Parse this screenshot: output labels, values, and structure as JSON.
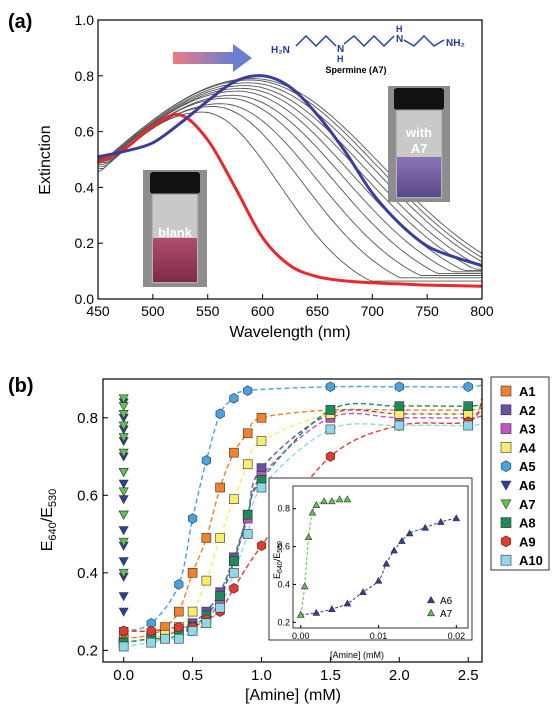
{
  "chart_data": [
    {
      "type": "line",
      "panel_label": "(a)",
      "xlabel": "Wavelength (nm)",
      "ylabel": "Extinction",
      "xlim": [
        450,
        800
      ],
      "ylim": [
        0.0,
        1.0
      ],
      "xticks": [
        450,
        500,
        550,
        600,
        650,
        700,
        750,
        800
      ],
      "yticks": [
        0.0,
        0.2,
        0.4,
        0.6,
        0.8,
        1.0
      ],
      "series": [
        {
          "style": "blank",
          "color": "#e8282b",
          "peak_nm": 525,
          "peak": 0.66,
          "x": [
            450,
            475,
            500,
            525,
            550,
            575,
            600,
            625,
            650,
            675,
            700,
            725,
            750,
            775,
            800
          ],
          "y": [
            0.49,
            0.54,
            0.62,
            0.66,
            0.57,
            0.4,
            0.22,
            0.12,
            0.08,
            0.065,
            0.058,
            0.054,
            0.05,
            0.048,
            0.046
          ]
        },
        {
          "style": "intermediate",
          "color": "#555555",
          "peak_nm": 545,
          "peak": 0.67
        },
        {
          "style": "intermediate",
          "color": "#555555",
          "peak_nm": 555,
          "peak": 0.69
        },
        {
          "style": "intermediate",
          "color": "#555555",
          "peak_nm": 562,
          "peak": 0.7
        },
        {
          "style": "intermediate",
          "color": "#555555",
          "peak_nm": 568,
          "peak": 0.72
        },
        {
          "style": "intermediate",
          "color": "#555555",
          "peak_nm": 573,
          "peak": 0.73
        },
        {
          "style": "intermediate",
          "color": "#555555",
          "peak_nm": 577,
          "peak": 0.745
        },
        {
          "style": "intermediate",
          "color": "#555555",
          "peak_nm": 581,
          "peak": 0.755
        },
        {
          "style": "intermediate",
          "color": "#555555",
          "peak_nm": 584,
          "peak": 0.765
        },
        {
          "style": "intermediate",
          "color": "#555555",
          "peak_nm": 587,
          "peak": 0.775
        },
        {
          "style": "intermediate",
          "color": "#555555",
          "peak_nm": 589,
          "peak": 0.785
        },
        {
          "style": "intermediate",
          "color": "#555555",
          "peak_nm": 591,
          "peak": 0.79
        },
        {
          "style": "with A7",
          "color": "#3a3d9c",
          "peak_nm": 592,
          "peak": 0.8,
          "x": [
            450,
            475,
            500,
            525,
            550,
            575,
            600,
            625,
            650,
            675,
            700,
            725,
            750,
            775,
            800
          ],
          "y": [
            0.51,
            0.53,
            0.56,
            0.63,
            0.71,
            0.78,
            0.8,
            0.76,
            0.66,
            0.53,
            0.38,
            0.27,
            0.19,
            0.15,
            0.12
          ]
        }
      ],
      "annotations": {
        "molecule_left": "H₂N",
        "molecule_nh": "N",
        "molecule_h": "H",
        "molecule_right": "NH₂",
        "molecule_name": "Spermine (A7)",
        "vial_blank": "blank",
        "vial_with_line1": "with",
        "vial_with_line2": "A7"
      }
    },
    {
      "type": "scatter",
      "panel_label": "(b)",
      "xlabel": "[Amine] (mM)",
      "ylabel_main": "E",
      "ylabel_sub1": "640",
      "ylabel_sep": "/E",
      "ylabel_sub2": "530",
      "xlim": [
        -0.15,
        2.6
      ],
      "ylim": [
        0.17,
        0.9
      ],
      "xticks": [
        0.0,
        0.5,
        1.0,
        1.5,
        2.0,
        2.5
      ],
      "yticks": [
        0.2,
        0.4,
        0.6,
        0.8
      ],
      "legend_position": "right-outside",
      "series": [
        {
          "name": "A1",
          "color": "#f0812d",
          "marker": "square",
          "x": [
            0,
            0.2,
            0.3,
            0.4,
            0.5,
            0.6,
            0.7,
            0.8,
            0.9,
            1.0,
            1.5,
            2.0,
            2.5
          ],
          "y": [
            0.23,
            0.24,
            0.26,
            0.3,
            0.4,
            0.49,
            0.62,
            0.71,
            0.76,
            0.8,
            0.82,
            0.82,
            0.82
          ]
        },
        {
          "name": "A2",
          "color": "#6b4fa5",
          "marker": "square",
          "x": [
            0,
            0.2,
            0.3,
            0.4,
            0.5,
            0.6,
            0.7,
            0.8,
            0.9,
            1.0,
            1.5,
            2.0,
            2.5
          ],
          "y": [
            0.22,
            0.23,
            0.24,
            0.25,
            0.27,
            0.3,
            0.35,
            0.44,
            0.55,
            0.67,
            0.81,
            0.81,
            0.81
          ]
        },
        {
          "name": "A3",
          "color": "#c154c1",
          "marker": "square",
          "x": [
            0,
            0.2,
            0.3,
            0.4,
            0.5,
            0.6,
            0.7,
            0.8,
            0.9,
            1.0,
            1.5,
            2.0,
            2.5
          ],
          "y": [
            0.22,
            0.23,
            0.24,
            0.25,
            0.26,
            0.28,
            0.33,
            0.43,
            0.54,
            0.65,
            0.8,
            0.8,
            0.8
          ]
        },
        {
          "name": "A4",
          "color": "#f7ee6e",
          "marker": "square",
          "x": [
            0,
            0.2,
            0.3,
            0.4,
            0.5,
            0.6,
            0.7,
            0.8,
            0.9,
            1.0,
            1.5,
            2.0,
            2.5
          ],
          "y": [
            0.22,
            0.23,
            0.24,
            0.26,
            0.3,
            0.38,
            0.49,
            0.59,
            0.68,
            0.74,
            0.81,
            0.81,
            0.81
          ]
        },
        {
          "name": "A5",
          "color": "#4aa3e0",
          "marker": "hexagon",
          "x": [
            0,
            0.2,
            0.4,
            0.5,
            0.6,
            0.7,
            0.8,
            0.9,
            1.5,
            2.0,
            2.5
          ],
          "y": [
            0.25,
            0.27,
            0.37,
            0.54,
            0.69,
            0.81,
            0.85,
            0.87,
            0.88,
            0.88,
            0.88
          ]
        },
        {
          "name": "A6",
          "color": "#2e3f99",
          "marker": "triangle-down",
          "x": [
            0,
            0,
            0,
            0,
            0,
            0,
            0,
            0,
            0,
            0,
            0,
            0,
            0,
            0,
            0,
            0
          ],
          "y": [
            0.84,
            0.8,
            0.77,
            0.74,
            0.7,
            0.66,
            0.63,
            0.59,
            0.55,
            0.51,
            0.47,
            0.43,
            0.39,
            0.34,
            0.3,
            0.25
          ]
        },
        {
          "name": "A7",
          "color": "#5fc44f",
          "marker": "triangle-down",
          "x": [
            0,
            0,
            0,
            0,
            0,
            0,
            0,
            0,
            0,
            0,
            0,
            0
          ],
          "y": [
            0.85,
            0.83,
            0.81,
            0.78,
            0.75,
            0.71,
            0.66,
            0.61,
            0.55,
            0.48,
            0.4,
            0.24
          ]
        },
        {
          "name": "A8",
          "color": "#1f8a5a",
          "marker": "square",
          "x": [
            0,
            0.2,
            0.3,
            0.4,
            0.5,
            0.6,
            0.7,
            0.8,
            0.9,
            1.0,
            1.5,
            2.0,
            2.5
          ],
          "y": [
            0.22,
            0.23,
            0.23,
            0.24,
            0.26,
            0.29,
            0.34,
            0.43,
            0.55,
            0.64,
            0.82,
            0.83,
            0.83
          ]
        },
        {
          "name": "A9",
          "color": "#e23a2c",
          "marker": "hexagon",
          "x": [
            0,
            0.2,
            0.4,
            0.5,
            0.6,
            0.7,
            0.8,
            1.0,
            1.5,
            2.0,
            2.5
          ],
          "y": [
            0.25,
            0.25,
            0.26,
            0.26,
            0.28,
            0.3,
            0.36,
            0.47,
            0.7,
            0.78,
            0.79
          ]
        },
        {
          "name": "A10",
          "color": "#8fd8e6",
          "marker": "square",
          "x": [
            0,
            0.2,
            0.3,
            0.4,
            0.5,
            0.6,
            0.7,
            0.8,
            0.9,
            1.0,
            1.5,
            2.0,
            2.5
          ],
          "y": [
            0.21,
            0.22,
            0.23,
            0.23,
            0.25,
            0.27,
            0.31,
            0.4,
            0.5,
            0.62,
            0.77,
            0.78,
            0.78
          ]
        }
      ],
      "inset": {
        "xlabel": "[Amine] (mM)",
        "ylabel_main": "E",
        "ylabel_sub1": "640",
        "ylabel_sep": "/E",
        "ylabel_sub2": "530",
        "xlim": [
          -0.001,
          0.0215
        ],
        "ylim": [
          0.17,
          0.92
        ],
        "xticks": [
          0.0,
          0.01,
          0.02
        ],
        "yticks": [
          0.2,
          0.4,
          0.6,
          0.8
        ],
        "series": [
          {
            "name": "A6",
            "color": "#2e3f99",
            "x": [
              0.0,
              0.002,
              0.004,
              0.006,
              0.008,
              0.01,
              0.011,
              0.012,
              0.013,
              0.014,
              0.016,
              0.018,
              0.02
            ],
            "y": [
              0.24,
              0.25,
              0.27,
              0.3,
              0.36,
              0.42,
              0.51,
              0.58,
              0.63,
              0.67,
              0.7,
              0.73,
              0.75
            ]
          },
          {
            "name": "A7",
            "color": "#5fc44f",
            "x": [
              0.0,
              0.0005,
              0.001,
              0.0015,
              0.002,
              0.003,
              0.004,
              0.005,
              0.006
            ],
            "y": [
              0.24,
              0.39,
              0.65,
              0.78,
              0.82,
              0.84,
              0.84,
              0.85,
              0.85
            ]
          }
        ]
      }
    }
  ]
}
